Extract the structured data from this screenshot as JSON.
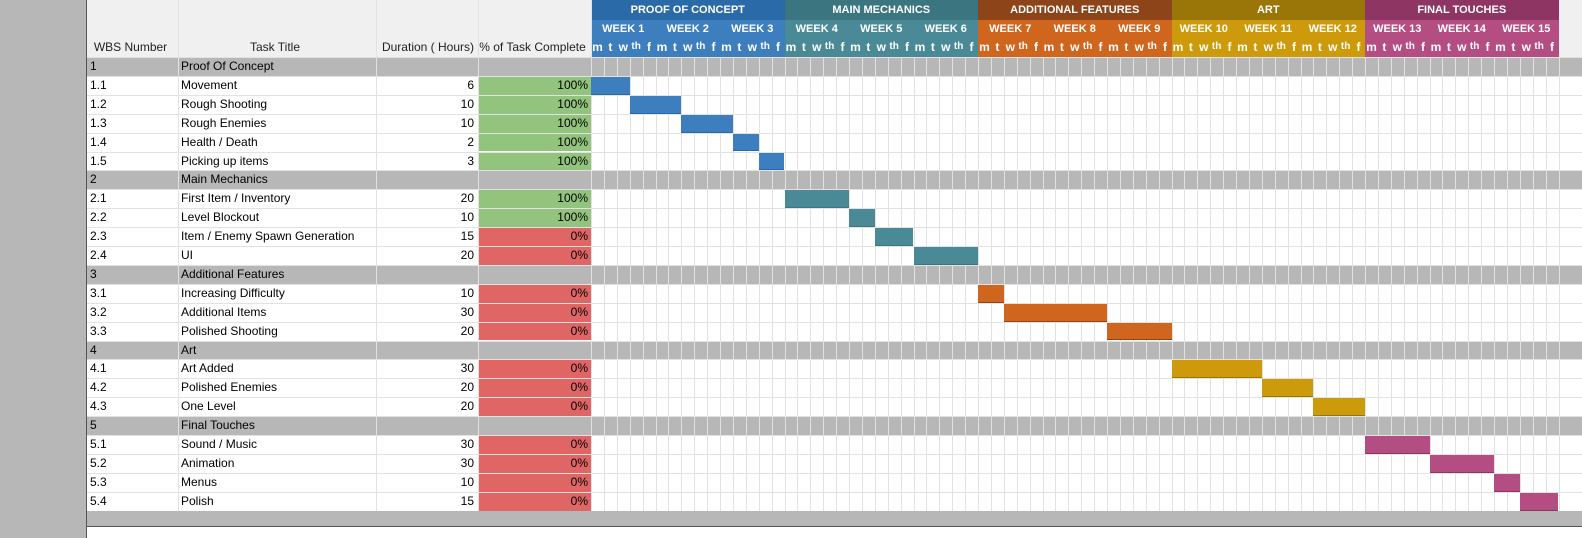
{
  "headers": {
    "wbs": "WBS Number",
    "task": "Task Title",
    "duration": "Duration ( Hours)",
    "percent": "% of Task Complete"
  },
  "phases": [
    {
      "label": "PROOF OF CONCEPT",
      "color": "#3d7ebf",
      "dark": "#2a6aa8",
      "weeks": [
        "WEEK 1",
        "WEEK 2",
        "WEEK 3"
      ]
    },
    {
      "label": "MAIN MECHANICS",
      "color": "#4a8a96",
      "dark": "#3b7680",
      "weeks": [
        "WEEK 4",
        "WEEK 5",
        "WEEK 6"
      ]
    },
    {
      "label": "ADDITIONAL FEATURES",
      "color": "#d0651e",
      "dark": "#8e4419",
      "weeks": [
        "WEEK 7",
        "WEEK 8",
        "WEEK 9"
      ]
    },
    {
      "label": "ART",
      "color": "#cd9a0b",
      "dark": "#9a7508",
      "weeks": [
        "WEEK 10",
        "WEEK 11",
        "WEEK 12"
      ]
    },
    {
      "label": "FINAL TOUCHES",
      "color": "#b44e82",
      "dark": "#8e3563",
      "weeks": [
        "WEEK 13",
        "WEEK 14",
        "WEEK 15"
      ]
    }
  ],
  "day_letters": [
    "m",
    "t",
    "w",
    "th",
    "f"
  ],
  "rows": [
    {
      "type": "section",
      "wbs": "1",
      "title": "Proof Of Concept"
    },
    {
      "type": "task",
      "wbs": "1.1",
      "title": "Movement",
      "duration": "6",
      "percent": "100%",
      "complete": true,
      "phase": 0,
      "start_day": 0,
      "len_days": 3
    },
    {
      "type": "task",
      "wbs": "1.2",
      "title": "Rough Shooting",
      "duration": "10",
      "percent": "100%",
      "complete": true,
      "phase": 0,
      "start_day": 3,
      "len_days": 4
    },
    {
      "type": "task",
      "wbs": "1.3",
      "title": "Rough Enemies",
      "duration": "10",
      "percent": "100%",
      "complete": true,
      "phase": 0,
      "start_day": 7,
      "len_days": 4
    },
    {
      "type": "task",
      "wbs": "1.4",
      "title": "Health / Death",
      "duration": "2",
      "percent": "100%",
      "complete": true,
      "phase": 0,
      "start_day": 11,
      "len_days": 2
    },
    {
      "type": "task",
      "wbs": "1.5",
      "title": "Picking up items",
      "duration": "3",
      "percent": "100%",
      "complete": true,
      "phase": 0,
      "start_day": 13,
      "len_days": 2
    },
    {
      "type": "section",
      "wbs": "2",
      "title": "Main Mechanics"
    },
    {
      "type": "task",
      "wbs": "2.1",
      "title": "First Item / Inventory",
      "duration": "20",
      "percent": "100%",
      "complete": true,
      "phase": 1,
      "start_day": 15,
      "len_days": 5
    },
    {
      "type": "task",
      "wbs": "2.2",
      "title": "Level Blockout",
      "duration": "10",
      "percent": "100%",
      "complete": true,
      "phase": 1,
      "start_day": 20,
      "len_days": 2
    },
    {
      "type": "task",
      "wbs": "2.3",
      "title": "Item / Enemy Spawn Generation",
      "duration": "15",
      "percent": "0%",
      "complete": false,
      "phase": 1,
      "start_day": 22,
      "len_days": 3
    },
    {
      "type": "task",
      "wbs": "2.4",
      "title": "UI",
      "duration": "20",
      "percent": "0%",
      "complete": false,
      "phase": 1,
      "start_day": 25,
      "len_days": 5
    },
    {
      "type": "section",
      "wbs": "3",
      "title": "Additional Features"
    },
    {
      "type": "task",
      "wbs": "3.1",
      "title": "Increasing Difficulty",
      "duration": "10",
      "percent": "0%",
      "complete": false,
      "phase": 2,
      "start_day": 30,
      "len_days": 2
    },
    {
      "type": "task",
      "wbs": "3.2",
      "title": "Additional Items",
      "duration": "30",
      "percent": "0%",
      "complete": false,
      "phase": 2,
      "start_day": 32,
      "len_days": 8
    },
    {
      "type": "task",
      "wbs": "3.3",
      "title": "Polished Shooting",
      "duration": "20",
      "percent": "0%",
      "complete": false,
      "phase": 2,
      "start_day": 40,
      "len_days": 5
    },
    {
      "type": "section",
      "wbs": "4",
      "title": "Art"
    },
    {
      "type": "task",
      "wbs": "4.1",
      "title": "Art Added",
      "duration": "30",
      "percent": "0%",
      "complete": false,
      "phase": 3,
      "start_day": 45,
      "len_days": 7
    },
    {
      "type": "task",
      "wbs": "4.2",
      "title": "Polished Enemies",
      "duration": "20",
      "percent": "0%",
      "complete": false,
      "phase": 3,
      "start_day": 52,
      "len_days": 4
    },
    {
      "type": "task",
      "wbs": "4.3",
      "title": "One Level",
      "duration": "20",
      "percent": "0%",
      "complete": false,
      "phase": 3,
      "start_day": 56,
      "len_days": 4
    },
    {
      "type": "section",
      "wbs": "5",
      "title": "Final Touches"
    },
    {
      "type": "task",
      "wbs": "5.1",
      "title": "Sound / Music",
      "duration": "30",
      "percent": "0%",
      "complete": false,
      "phase": 4,
      "start_day": 60,
      "len_days": 5
    },
    {
      "type": "task",
      "wbs": "5.2",
      "title": "Animation",
      "duration": "30",
      "percent": "0%",
      "complete": false,
      "phase": 4,
      "start_day": 65,
      "len_days": 5
    },
    {
      "type": "task",
      "wbs": "5.3",
      "title": "Menus",
      "duration": "10",
      "percent": "0%",
      "complete": false,
      "phase": 4,
      "start_day": 70,
      "len_days": 2
    },
    {
      "type": "task",
      "wbs": "5.4",
      "title": "Polish",
      "duration": "15",
      "percent": "0%",
      "complete": false,
      "phase": 4,
      "start_day": 72,
      "len_days": 3
    }
  ],
  "colors": {
    "complete_fill": "#93c47d",
    "incomplete_fill": "#e06666",
    "section_fill": "#b7b7b7",
    "margin_fill": "#b7b7b7"
  }
}
